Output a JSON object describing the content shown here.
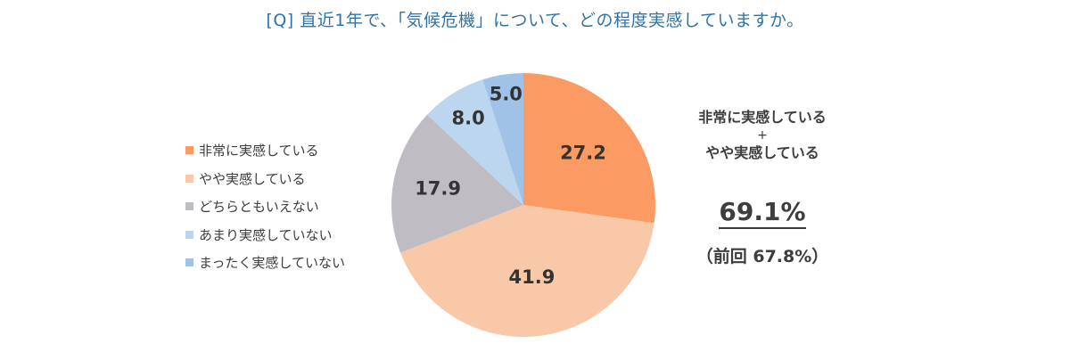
{
  "title": "[Q] 直近1年で、「気候危機」について、どの程度実感していますか。",
  "legend": [
    {
      "label": "非常に実感している",
      "color": "#fb9a62"
    },
    {
      "label": "やや実感している",
      "color": "#f8c8a8"
    },
    {
      "label": "どちらともいえない",
      "color": "#bfbcc4"
    },
    {
      "label": "あまり実感していない",
      "color": "#bcd6ef"
    },
    {
      "label": "まったく実感していない",
      "color": "#9fc2e6"
    }
  ],
  "summary": {
    "line1": "非常に実感している",
    "plus": "+",
    "line2": "やや実感している",
    "total": "69.1%",
    "previous": "（前回 67.8%）"
  },
  "chart_data": {
    "type": "pie",
    "title": "[Q] 直近1年で、「気候危機」について、どの程度実感していますか。",
    "categories": [
      "非常に実感している",
      "やや実感している",
      "どちらともいえない",
      "あまり実感していない",
      "まったく実感していない"
    ],
    "values": [
      27.2,
      41.9,
      17.9,
      8.0,
      5.0
    ],
    "labels": [
      "27.2",
      "41.9",
      "17.9",
      "8.0",
      "5.0"
    ],
    "colors": [
      "#fb9a62",
      "#f8c8a8",
      "#bfbcc4",
      "#bcd6ef",
      "#9fc2e6"
    ],
    "start_angle": "12 o'clock",
    "direction": "clockwise",
    "legend_position": "left",
    "annotation": {
      "text": "非常に実感している + やや実感している",
      "value": "69.1%",
      "previous": "（前回 67.8%）"
    }
  }
}
